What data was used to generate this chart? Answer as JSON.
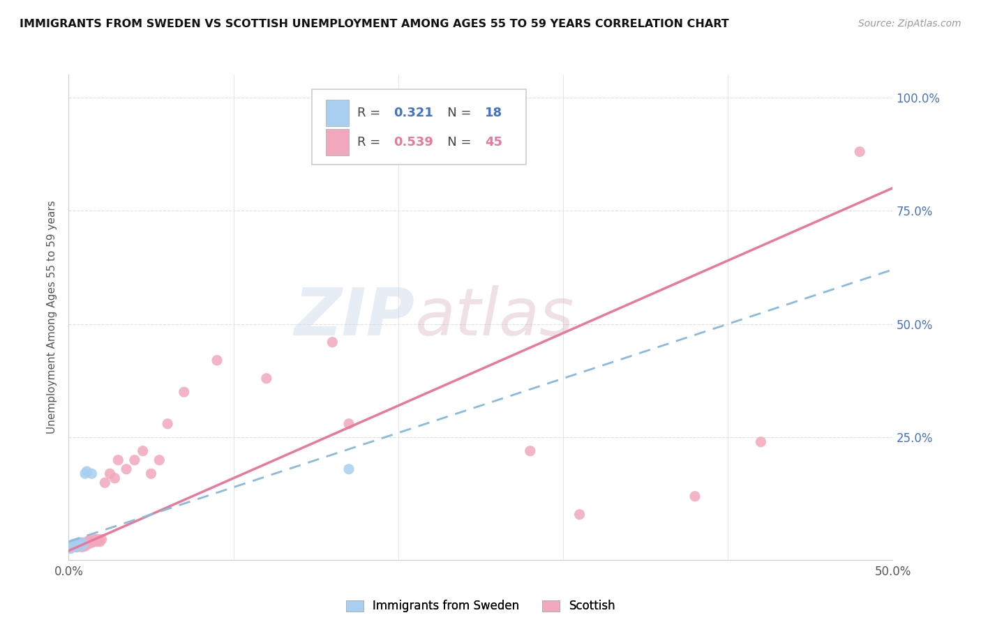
{
  "title": "IMMIGRANTS FROM SWEDEN VS SCOTTISH UNEMPLOYMENT AMONG AGES 55 TO 59 YEARS CORRELATION CHART",
  "source": "Source: ZipAtlas.com",
  "ylabel": "Unemployment Among Ages 55 to 59 years",
  "xlim": [
    0.0,
    0.5
  ],
  "ylim": [
    -0.02,
    1.05
  ],
  "xticks": [
    0.0,
    0.1,
    0.2,
    0.3,
    0.4,
    0.5
  ],
  "xticklabels": [
    "0.0%",
    "",
    "",
    "",
    "",
    "50.0%"
  ],
  "yticks": [
    0.0,
    0.25,
    0.5,
    0.75,
    1.0
  ],
  "yticklabels_right": [
    "",
    "25.0%",
    "50.0%",
    "75.0%",
    "100.0%"
  ],
  "r_blue": 0.321,
  "n_blue": 18,
  "r_pink": 0.539,
  "n_pink": 45,
  "blue_color": "#a8cff0",
  "pink_color": "#f2a8bc",
  "blue_line_color": "#88bbdd",
  "pink_line_color": "#e8799a",
  "grid_color": "#e0e0e0",
  "legend_blue_label": "Immigrants from Sweden",
  "legend_pink_label": "Scottish",
  "blue_scatter_x": [
    0.001,
    0.002,
    0.003,
    0.003,
    0.004,
    0.004,
    0.005,
    0.005,
    0.006,
    0.006,
    0.007,
    0.008,
    0.008,
    0.009,
    0.01,
    0.011,
    0.014,
    0.17
  ],
  "blue_scatter_y": [
    0.005,
    0.008,
    0.01,
    0.015,
    0.008,
    0.012,
    0.01,
    0.015,
    0.012,
    0.018,
    0.015,
    0.012,
    0.018,
    0.015,
    0.17,
    0.175,
    0.17,
    0.18
  ],
  "pink_scatter_x": [
    0.001,
    0.002,
    0.003,
    0.004,
    0.005,
    0.005,
    0.006,
    0.007,
    0.007,
    0.008,
    0.009,
    0.009,
    0.01,
    0.011,
    0.011,
    0.012,
    0.013,
    0.013,
    0.014,
    0.015,
    0.016,
    0.017,
    0.018,
    0.019,
    0.02,
    0.022,
    0.025,
    0.028,
    0.03,
    0.035,
    0.04,
    0.045,
    0.05,
    0.055,
    0.06,
    0.07,
    0.09,
    0.12,
    0.16,
    0.17,
    0.28,
    0.31,
    0.38,
    0.42,
    0.48
  ],
  "pink_scatter_y": [
    0.005,
    0.01,
    0.01,
    0.015,
    0.008,
    0.015,
    0.01,
    0.012,
    0.018,
    0.008,
    0.01,
    0.015,
    0.01,
    0.015,
    0.02,
    0.015,
    0.02,
    0.025,
    0.018,
    0.02,
    0.025,
    0.02,
    0.025,
    0.02,
    0.025,
    0.15,
    0.17,
    0.16,
    0.2,
    0.18,
    0.2,
    0.22,
    0.17,
    0.2,
    0.28,
    0.35,
    0.42,
    0.38,
    0.46,
    0.28,
    0.22,
    0.08,
    0.12,
    0.24,
    0.88
  ],
  "pink_line_x0": 0.0,
  "pink_line_y0": 0.0,
  "pink_line_x1": 0.5,
  "pink_line_y1": 0.8,
  "blue_line_x0": 0.0,
  "blue_line_y0": 0.02,
  "blue_line_x1": 0.5,
  "blue_line_y1": 0.62
}
